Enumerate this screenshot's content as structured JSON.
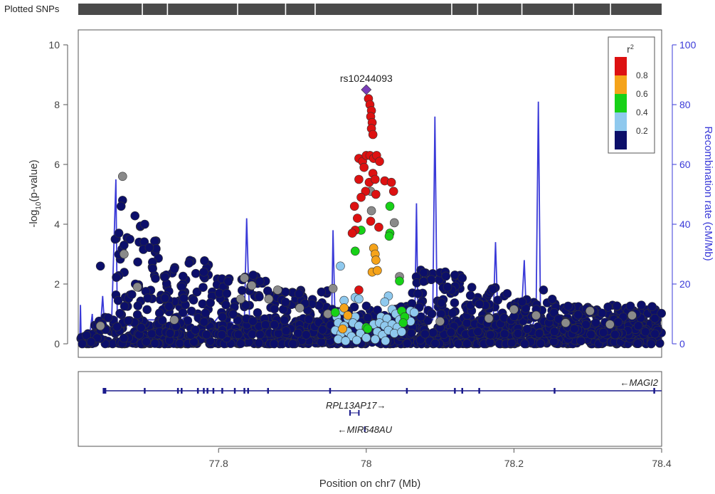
{
  "header": {
    "track_label": "Plotted SNPs"
  },
  "chart_data": {
    "type": "scatter",
    "xlabel": "Position on chr7 (Mb)",
    "ylabel": "-log10(p-value)",
    "ylabel_parts": {
      "pre": "-log",
      "sub": "10",
      "post": "(p-value)"
    },
    "y2label": "Recombination rate (cM/Mb)",
    "xlim": [
      77.61,
      78.4
    ],
    "ylim": [
      0,
      10
    ],
    "y2lim": [
      0,
      100
    ],
    "xticks": [
      77.8,
      78,
      78.2,
      78.4
    ],
    "xtick_labels": [
      "77.8",
      "78",
      "78.2",
      "78.4"
    ],
    "yticks": [
      0,
      2,
      4,
      6,
      8,
      10
    ],
    "ytick_labels": [
      "0",
      "2",
      "4",
      "6",
      "8",
      "10"
    ],
    "y2ticks": [
      0,
      20,
      40,
      60,
      80,
      100
    ],
    "y2tick_labels": [
      "0",
      "20",
      "40",
      "60",
      "80",
      "100"
    ],
    "grid": false,
    "legend": {
      "title": "r²",
      "placement": "top-right",
      "bins": [
        {
          "range": [
            0.8,
            1.0
          ],
          "color": "#dd1111"
        },
        {
          "range": [
            0.6,
            0.8
          ],
          "color": "#f5a31a"
        },
        {
          "range": [
            0.4,
            0.6
          ],
          "color": "#17d117"
        },
        {
          "range": [
            0.2,
            0.4
          ],
          "color": "#8fc9ee"
        },
        {
          "range": [
            0.0,
            0.2
          ],
          "color": "#0c0f6a"
        }
      ],
      "tick_labels": [
        "0.8",
        "0.6",
        "0.4",
        "0.2"
      ]
    },
    "lead_snp": {
      "label": "rs10244093",
      "x": 78.0,
      "y": 8.5,
      "color": "#7a3db8"
    },
    "colors": {
      "na": "#8a8a8a",
      "recomb": "#3a3ad8",
      "axis_right": "#3a3ad8",
      "gene": "#1a1a8c"
    },
    "snp_tick_positions": [
      77.696,
      77.73,
      77.825,
      77.89,
      77.93,
      78.115,
      78.15,
      78.21,
      78.28,
      78.33
    ],
    "highlighted_snps": [
      {
        "r2bin": "red",
        "x": 78.003,
        "y": 8.2
      },
      {
        "r2bin": "red",
        "x": 78.005,
        "y": 8.0
      },
      {
        "r2bin": "red",
        "x": 78.007,
        "y": 7.8
      },
      {
        "r2bin": "red",
        "x": 78.006,
        "y": 7.6
      },
      {
        "r2bin": "red",
        "x": 78.008,
        "y": 7.4
      },
      {
        "r2bin": "red",
        "x": 78.007,
        "y": 7.2
      },
      {
        "r2bin": "red",
        "x": 78.009,
        "y": 7.0
      },
      {
        "r2bin": "red",
        "x": 77.99,
        "y": 6.2
      },
      {
        "r2bin": "red",
        "x": 77.995,
        "y": 6.1
      },
      {
        "r2bin": "red",
        "x": 78.0,
        "y": 6.3
      },
      {
        "r2bin": "red",
        "x": 78.005,
        "y": 6.3
      },
      {
        "r2bin": "red",
        "x": 78.01,
        "y": 6.2
      },
      {
        "r2bin": "red",
        "x": 78.014,
        "y": 6.3
      },
      {
        "r2bin": "red",
        "x": 78.018,
        "y": 6.1
      },
      {
        "r2bin": "red",
        "x": 77.997,
        "y": 5.9
      },
      {
        "r2bin": "red",
        "x": 78.009,
        "y": 5.7
      },
      {
        "r2bin": "red",
        "x": 77.99,
        "y": 5.5
      },
      {
        "r2bin": "red",
        "x": 78.004,
        "y": 5.4
      },
      {
        "r2bin": "red",
        "x": 78.012,
        "y": 5.5
      },
      {
        "r2bin": "red",
        "x": 78.025,
        "y": 5.45
      },
      {
        "r2bin": "red",
        "x": 78.034,
        "y": 5.4
      },
      {
        "r2bin": "red",
        "x": 78.037,
        "y": 5.1
      },
      {
        "r2bin": "red",
        "x": 77.999,
        "y": 5.1
      },
      {
        "r2bin": "red",
        "x": 78.013,
        "y": 5.0
      },
      {
        "r2bin": "red",
        "x": 77.993,
        "y": 4.9
      },
      {
        "r2bin": "red",
        "x": 77.984,
        "y": 4.6
      },
      {
        "r2bin": "red",
        "x": 77.988,
        "y": 4.2
      },
      {
        "r2bin": "red",
        "x": 78.006,
        "y": 4.1
      },
      {
        "r2bin": "red",
        "x": 77.985,
        "y": 3.8
      },
      {
        "r2bin": "red",
        "x": 77.981,
        "y": 3.7
      },
      {
        "r2bin": "red",
        "x": 78.017,
        "y": 3.9
      },
      {
        "r2bin": "red",
        "x": 77.99,
        "y": 1.8
      },
      {
        "r2bin": "orange",
        "x": 78.01,
        "y": 3.2
      },
      {
        "r2bin": "orange",
        "x": 78.012,
        "y": 3.0
      },
      {
        "r2bin": "orange",
        "x": 78.013,
        "y": 2.8
      },
      {
        "r2bin": "orange",
        "x": 78.008,
        "y": 2.4
      },
      {
        "r2bin": "orange",
        "x": 78.015,
        "y": 2.45
      },
      {
        "r2bin": "orange",
        "x": 77.97,
        "y": 1.2
      },
      {
        "r2bin": "orange",
        "x": 77.975,
        "y": 0.95
      },
      {
        "r2bin": "orange",
        "x": 77.968,
        "y": 0.5
      },
      {
        "r2bin": "green",
        "x": 78.032,
        "y": 4.6
      },
      {
        "r2bin": "green",
        "x": 78.032,
        "y": 3.7
      },
      {
        "r2bin": "green",
        "x": 78.031,
        "y": 3.6
      },
      {
        "r2bin": "green",
        "x": 77.993,
        "y": 3.8
      },
      {
        "r2bin": "green",
        "x": 77.985,
        "y": 3.1
      },
      {
        "r2bin": "green",
        "x": 78.045,
        "y": 2.1
      },
      {
        "r2bin": "green",
        "x": 77.958,
        "y": 1.05
      },
      {
        "r2bin": "green",
        "x": 78.048,
        "y": 1.1
      },
      {
        "r2bin": "green",
        "x": 78.052,
        "y": 0.9
      },
      {
        "r2bin": "green",
        "x": 78.05,
        "y": 0.7
      },
      {
        "r2bin": "green",
        "x": 78.0,
        "y": 0.55
      },
      {
        "r2bin": "green",
        "x": 78.002,
        "y": 0.5
      },
      {
        "r2bin": "ltblue",
        "x": 77.965,
        "y": 2.6
      },
      {
        "r2bin": "ltblue",
        "x": 78.03,
        "y": 1.6
      },
      {
        "r2bin": "ltblue",
        "x": 77.97,
        "y": 1.45
      },
      {
        "r2bin": "ltblue",
        "x": 77.985,
        "y": 1.55
      },
      {
        "r2bin": "ltblue",
        "x": 77.99,
        "y": 1.5
      },
      {
        "r2bin": "ltblue",
        "x": 78.025,
        "y": 1.4
      },
      {
        "r2bin": "ltblue",
        "x": 77.96,
        "y": 1.0
      },
      {
        "r2bin": "ltblue",
        "x": 77.968,
        "y": 1.1
      },
      {
        "r2bin": "ltblue",
        "x": 78.035,
        "y": 1.15
      },
      {
        "r2bin": "ltblue",
        "x": 78.04,
        "y": 1.0
      },
      {
        "r2bin": "ltblue",
        "x": 78.06,
        "y": 1.1
      },
      {
        "r2bin": "ltblue",
        "x": 78.065,
        "y": 1.05
      },
      {
        "r2bin": "ltblue",
        "x": 77.96,
        "y": 0.9
      },
      {
        "r2bin": "ltblue",
        "x": 77.975,
        "y": 0.85
      },
      {
        "r2bin": "ltblue",
        "x": 77.985,
        "y": 0.9
      },
      {
        "r2bin": "ltblue",
        "x": 78.02,
        "y": 0.9
      },
      {
        "r2bin": "ltblue",
        "x": 78.028,
        "y": 0.85
      },
      {
        "r2bin": "ltblue",
        "x": 78.045,
        "y": 0.8
      },
      {
        "r2bin": "ltblue",
        "x": 78.055,
        "y": 0.85
      },
      {
        "r2bin": "ltblue",
        "x": 78.06,
        "y": 0.75
      },
      {
        "r2bin": "ltblue",
        "x": 77.962,
        "y": 0.7
      },
      {
        "r2bin": "ltblue",
        "x": 77.97,
        "y": 0.6
      },
      {
        "r2bin": "ltblue",
        "x": 77.982,
        "y": 0.7
      },
      {
        "r2bin": "ltblue",
        "x": 77.99,
        "y": 0.6
      },
      {
        "r2bin": "ltblue",
        "x": 78.01,
        "y": 0.65
      },
      {
        "r2bin": "ltblue",
        "x": 78.018,
        "y": 0.7
      },
      {
        "r2bin": "ltblue",
        "x": 78.025,
        "y": 0.6
      },
      {
        "r2bin": "ltblue",
        "x": 78.035,
        "y": 0.65
      },
      {
        "r2bin": "ltblue",
        "x": 78.042,
        "y": 0.55
      },
      {
        "r2bin": "ltblue",
        "x": 77.958,
        "y": 0.45
      },
      {
        "r2bin": "ltblue",
        "x": 77.966,
        "y": 0.35
      },
      {
        "r2bin": "ltblue",
        "x": 77.975,
        "y": 0.4
      },
      {
        "r2bin": "ltblue",
        "x": 77.98,
        "y": 0.25
      },
      {
        "r2bin": "ltblue",
        "x": 77.992,
        "y": 0.35
      },
      {
        "r2bin": "ltblue",
        "x": 78.015,
        "y": 0.4
      },
      {
        "r2bin": "ltblue",
        "x": 78.022,
        "y": 0.3
      },
      {
        "r2bin": "ltblue",
        "x": 78.03,
        "y": 0.45
      },
      {
        "r2bin": "ltblue",
        "x": 78.038,
        "y": 0.35
      },
      {
        "r2bin": "ltblue",
        "x": 78.048,
        "y": 0.4
      },
      {
        "r2bin": "ltblue",
        "x": 77.962,
        "y": 0.15
      },
      {
        "r2bin": "ltblue",
        "x": 77.972,
        "y": 0.1
      },
      {
        "r2bin": "ltblue",
        "x": 77.987,
        "y": 0.12
      },
      {
        "r2bin": "ltblue",
        "x": 78.0,
        "y": 0.2
      },
      {
        "r2bin": "ltblue",
        "x": 78.012,
        "y": 0.15
      },
      {
        "r2bin": "ltblue",
        "x": 78.026,
        "y": 0.1
      },
      {
        "r2bin": "na",
        "x": 77.67,
        "y": 5.6
      },
      {
        "r2bin": "na",
        "x": 78.006,
        "y": 5.1
      },
      {
        "r2bin": "na",
        "x": 78.007,
        "y": 4.45
      },
      {
        "r2bin": "na",
        "x": 78.038,
        "y": 4.05
      },
      {
        "r2bin": "na",
        "x": 78.045,
        "y": 2.25
      },
      {
        "r2bin": "na",
        "x": 77.835,
        "y": 2.2
      },
      {
        "r2bin": "na",
        "x": 77.845,
        "y": 1.95
      },
      {
        "r2bin": "na",
        "x": 77.88,
        "y": 1.8
      },
      {
        "r2bin": "na",
        "x": 77.955,
        "y": 1.85
      },
      {
        "r2bin": "na",
        "x": 77.868,
        "y": 1.5
      },
      {
        "r2bin": "na",
        "x": 77.83,
        "y": 1.5
      },
      {
        "r2bin": "na",
        "x": 77.91,
        "y": 1.2
      },
      {
        "r2bin": "na",
        "x": 77.948,
        "y": 1.0
      },
      {
        "r2bin": "na",
        "x": 78.2,
        "y": 1.15
      },
      {
        "r2bin": "na",
        "x": 78.23,
        "y": 0.95
      },
      {
        "r2bin": "na",
        "x": 78.303,
        "y": 1.1
      },
      {
        "r2bin": "na",
        "x": 78.36,
        "y": 0.95
      },
      {
        "r2bin": "na",
        "x": 77.74,
        "y": 0.8
      },
      {
        "r2bin": "na",
        "x": 78.1,
        "y": 0.75
      },
      {
        "r2bin": "na",
        "x": 78.27,
        "y": 0.7
      },
      {
        "r2bin": "na",
        "x": 77.69,
        "y": 1.9
      },
      {
        "r2bin": "na",
        "x": 77.672,
        "y": 3.0
      },
      {
        "r2bin": "na",
        "x": 78.166,
        "y": 0.85
      },
      {
        "r2bin": "na",
        "x": 78.33,
        "y": 0.65
      },
      {
        "r2bin": "na",
        "x": 77.64,
        "y": 0.6
      }
    ],
    "recombination": [
      [
        77.612,
        0
      ],
      [
        77.613,
        13
      ],
      [
        77.614,
        0
      ],
      [
        77.621,
        1
      ],
      [
        77.625,
        2
      ],
      [
        77.629,
        10
      ],
      [
        77.631,
        1
      ],
      [
        77.64,
        5
      ],
      [
        77.643,
        16
      ],
      [
        77.646,
        4
      ],
      [
        77.655,
        6
      ],
      [
        77.661,
        55
      ],
      [
        77.663,
        5
      ],
      [
        77.67,
        7
      ],
      [
        77.68,
        6
      ],
      [
        77.7,
        8
      ],
      [
        77.72,
        8
      ],
      [
        77.74,
        6
      ],
      [
        77.76,
        10
      ],
      [
        77.78,
        8
      ],
      [
        77.79,
        6
      ],
      [
        77.8,
        9
      ],
      [
        77.82,
        7
      ],
      [
        77.835,
        8
      ],
      [
        77.838,
        42
      ],
      [
        77.842,
        8
      ],
      [
        77.85,
        6
      ],
      [
        77.87,
        8
      ],
      [
        77.89,
        6
      ],
      [
        77.91,
        8
      ],
      [
        77.93,
        6
      ],
      [
        77.953,
        5
      ],
      [
        77.955,
        38
      ],
      [
        77.958,
        5
      ],
      [
        77.97,
        3
      ],
      [
        77.99,
        2
      ],
      [
        78.0,
        3
      ],
      [
        78.02,
        2
      ],
      [
        78.04,
        3
      ],
      [
        78.055,
        4
      ],
      [
        78.062,
        5
      ],
      [
        78.066,
        12
      ],
      [
        78.068,
        47
      ],
      [
        78.07,
        8
      ],
      [
        78.075,
        5
      ],
      [
        78.08,
        13
      ],
      [
        78.082,
        7
      ],
      [
        78.09,
        8
      ],
      [
        78.093,
        76
      ],
      [
        78.096,
        8
      ],
      [
        78.1,
        8
      ],
      [
        78.12,
        9
      ],
      [
        78.14,
        7
      ],
      [
        78.16,
        9
      ],
      [
        78.172,
        8
      ],
      [
        78.175,
        34
      ],
      [
        78.178,
        10
      ],
      [
        78.19,
        8
      ],
      [
        78.21,
        9
      ],
      [
        78.214,
        28
      ],
      [
        78.217,
        8
      ],
      [
        78.225,
        6
      ],
      [
        78.23,
        10
      ],
      [
        78.233,
        81
      ],
      [
        78.236,
        8
      ],
      [
        78.25,
        7
      ],
      [
        78.27,
        7
      ],
      [
        78.29,
        6
      ],
      [
        78.31,
        5
      ],
      [
        78.33,
        6
      ],
      [
        78.35,
        5
      ],
      [
        78.37,
        6
      ],
      [
        78.39,
        7
      ],
      [
        78.4,
        6
      ]
    ],
    "genes": [
      {
        "name": "MAGI2",
        "label": "←MAGI2",
        "start": 77.646,
        "end": 78.4,
        "strand": "-",
        "exons": [
          77.646,
          77.7,
          77.745,
          77.75,
          77.772,
          77.78,
          77.785,
          77.793,
          77.805,
          77.822,
          77.835,
          77.84,
          77.867,
          77.951,
          78.055,
          78.12,
          78.13,
          78.153,
          78.255,
          78.39
        ]
      },
      {
        "name": "RPL13AP17",
        "label": "RPL13AP17→",
        "start": 77.978,
        "end": 77.99,
        "strand": "+",
        "exons": [
          77.978,
          77.99
        ]
      },
      {
        "name": "MIR548AU",
        "label": "←MIR548AU",
        "start": 77.998,
        "end": 77.999,
        "strand": "-",
        "exons": [
          77.998
        ]
      }
    ]
  }
}
